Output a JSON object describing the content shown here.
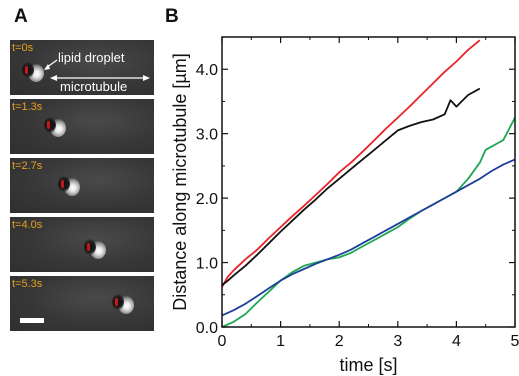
{
  "panel_a": {
    "label": "A",
    "frames": [
      {
        "time": "t=0s"
      },
      {
        "time": "t=1.3s"
      },
      {
        "time": "t=2.7s"
      },
      {
        "time": "t=4.0s"
      },
      {
        "time": "t=5.3s"
      }
    ],
    "annotations": {
      "lipid_droplet": "lipid droplet",
      "microtubule": "microtubule"
    }
  },
  "panel_b": {
    "label": "B"
  },
  "chart_data": {
    "type": "line",
    "title": "",
    "xlabel": "time [s]",
    "ylabel": "Distance along microtubule [µm]",
    "xlim": [
      0,
      5
    ],
    "ylim": [
      0,
      4.5
    ],
    "xticks": [
      "0",
      "1",
      "2",
      "3",
      "4",
      "5"
    ],
    "yticks": [
      "0.0",
      "1.0",
      "2.0",
      "3.0",
      "4.0"
    ],
    "grid": false,
    "legend": "none",
    "series": [
      {
        "color": "#e8232a",
        "x": [
          0,
          0.1,
          0.2,
          0.4,
          0.6,
          0.8,
          1.0,
          1.2,
          1.4,
          1.6,
          1.8,
          2.0,
          2.2,
          2.4,
          2.6,
          2.8,
          3.0,
          3.2,
          3.4,
          3.6,
          3.8,
          4.0,
          4.2,
          4.4
        ],
        "y": [
          0.62,
          0.78,
          0.88,
          1.05,
          1.2,
          1.38,
          1.55,
          1.72,
          1.88,
          2.05,
          2.22,
          2.4,
          2.55,
          2.72,
          2.9,
          3.08,
          3.25,
          3.42,
          3.6,
          3.78,
          3.96,
          4.12,
          4.3,
          4.45
        ]
      },
      {
        "color": "#111111",
        "x": [
          0,
          0.1,
          0.2,
          0.4,
          0.6,
          0.8,
          1.0,
          1.2,
          1.4,
          1.6,
          1.8,
          2.0,
          2.2,
          2.4,
          2.6,
          2.8,
          3.0,
          3.2,
          3.4,
          3.6,
          3.8,
          3.9,
          4.0,
          4.2,
          4.4
        ],
        "y": [
          0.65,
          0.72,
          0.8,
          0.95,
          1.12,
          1.3,
          1.48,
          1.65,
          1.82,
          1.98,
          2.15,
          2.3,
          2.45,
          2.6,
          2.75,
          2.9,
          3.05,
          3.12,
          3.18,
          3.22,
          3.3,
          3.52,
          3.42,
          3.6,
          3.7
        ]
      },
      {
        "color": "#1ea651",
        "x": [
          0,
          0.2,
          0.4,
          0.6,
          0.8,
          1.0,
          1.2,
          1.4,
          1.6,
          1.8,
          2.0,
          2.2,
          2.4,
          2.6,
          2.8,
          3.0,
          3.2,
          3.4,
          3.6,
          3.8,
          4.0,
          4.2,
          4.4,
          4.5,
          4.6,
          4.8,
          5.0
        ],
        "y": [
          0.0,
          0.08,
          0.2,
          0.38,
          0.55,
          0.72,
          0.85,
          0.95,
          1.0,
          1.05,
          1.08,
          1.15,
          1.25,
          1.35,
          1.45,
          1.55,
          1.68,
          1.8,
          1.9,
          2.0,
          2.1,
          2.3,
          2.55,
          2.75,
          2.8,
          2.9,
          3.25
        ]
      },
      {
        "color": "#1f3f9b",
        "x": [
          0,
          0.2,
          0.4,
          0.6,
          0.8,
          1.0,
          1.2,
          1.4,
          1.6,
          1.8,
          2.0,
          2.2,
          2.4,
          2.6,
          2.8,
          3.0,
          3.2,
          3.4,
          3.6,
          3.8,
          4.0,
          4.2,
          4.4,
          4.6,
          4.8,
          5.0
        ],
        "y": [
          0.18,
          0.26,
          0.36,
          0.48,
          0.6,
          0.72,
          0.82,
          0.9,
          0.98,
          1.05,
          1.12,
          1.2,
          1.3,
          1.4,
          1.5,
          1.6,
          1.7,
          1.8,
          1.9,
          2.0,
          2.1,
          2.2,
          2.3,
          2.42,
          2.52,
          2.6
        ]
      }
    ]
  }
}
